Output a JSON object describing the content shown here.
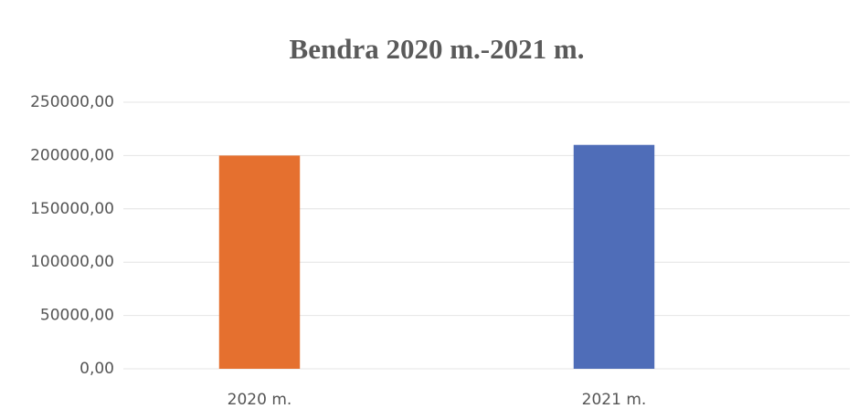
{
  "chart_data": {
    "type": "bar",
    "title": "Bendra 2020 m.-2021 m.",
    "categories": [
      "2020 m.",
      "2021 m."
    ],
    "values": [
      200000,
      210000
    ],
    "colors": [
      "#e5702f",
      "#4f6db8"
    ],
    "ylim": [
      0,
      250000
    ],
    "yticks": [
      {
        "value": 0,
        "label": "0,00"
      },
      {
        "value": 50000,
        "label": "50000,00"
      },
      {
        "value": 100000,
        "label": "100000,00"
      },
      {
        "value": 150000,
        "label": "150000,00"
      },
      {
        "value": 200000,
        "label": "200000,00"
      },
      {
        "value": 250000,
        "label": "250000,00"
      }
    ],
    "grid": true
  }
}
